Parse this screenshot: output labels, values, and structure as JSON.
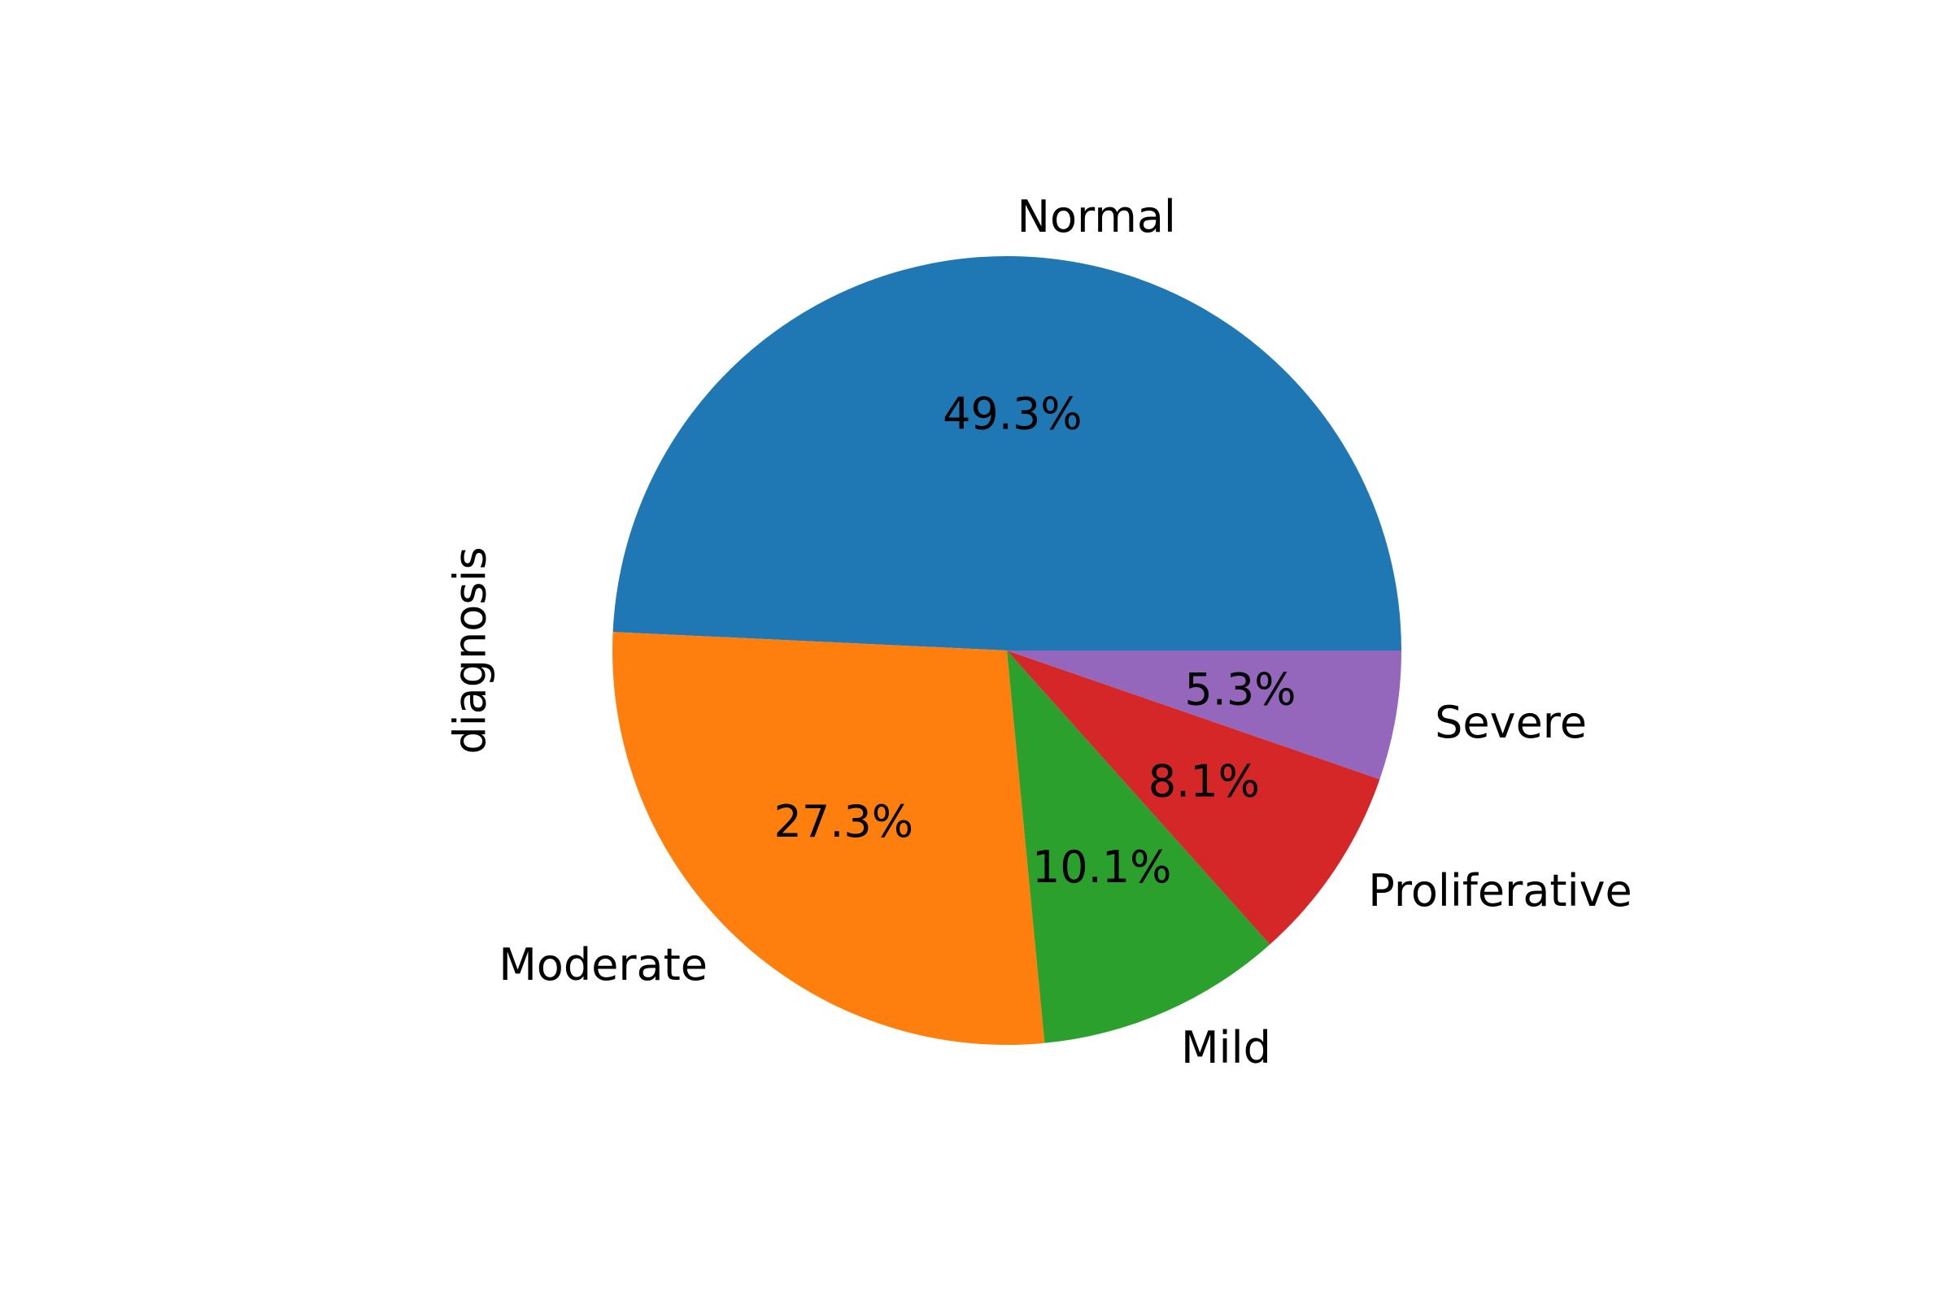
{
  "chart_data": {
    "type": "pie",
    "ylabel": "diagnosis",
    "categories": [
      "Normal",
      "Moderate",
      "Mild",
      "Proliferative",
      "Severe"
    ],
    "values": [
      49.3,
      27.3,
      10.1,
      8.1,
      5.3
    ],
    "percent_labels": [
      "49.3%",
      "27.3%",
      "10.1%",
      "8.1%",
      "5.3%"
    ],
    "colors": [
      "#1f77b4",
      "#ff7f0e",
      "#2ca02c",
      "#d62728",
      "#9467bd"
    ],
    "start_angle": 0,
    "direction": "counterclockwise"
  }
}
